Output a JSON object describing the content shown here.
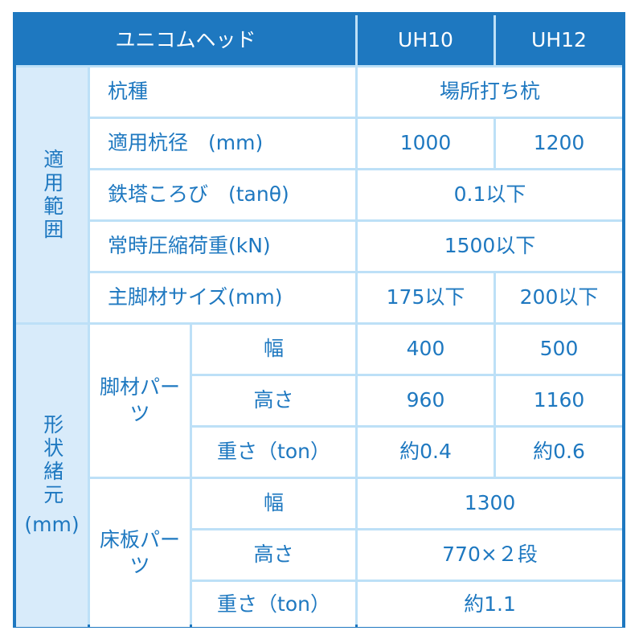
{
  "header": {
    "title": "ユニコムヘッド",
    "col1": "UH10",
    "col2": "UH12"
  },
  "groups": {
    "scope": "適用範囲",
    "shape": "形状緒元",
    "shape_unit": "(mm)",
    "leg": "脚材パーツ",
    "floor": "床板パーツ"
  },
  "rows": {
    "pile_type": {
      "label": "杭種",
      "value": "場所打ち杭"
    },
    "pile_dia": {
      "label": "適用杭径　(mm)",
      "uh10": "1000",
      "uh12": "1200"
    },
    "tilt": {
      "label": "鉄塔ころび　(tanθ)",
      "value": "0.1以下"
    },
    "load": {
      "label": "常時圧縮荷重(kN)",
      "value": "1500以下"
    },
    "main_leg": {
      "label": "主脚材サイズ(mm)",
      "uh10": "175以下",
      "uh12": "200以下"
    },
    "leg_width": {
      "label": "幅",
      "uh10": "400",
      "uh12": "500"
    },
    "leg_height": {
      "label": "高さ",
      "uh10": "960",
      "uh12": "1160"
    },
    "leg_weight": {
      "label": "重さ（ton）",
      "uh10": "約0.4",
      "uh12": "約0.6"
    },
    "floor_width": {
      "label": "幅",
      "value": "1300"
    },
    "floor_height": {
      "label": "高さ",
      "value": "770×２段"
    },
    "floor_weight": {
      "label": "重さ（ton）",
      "value": "約1.1"
    }
  },
  "colors": {
    "primary": "#1e78c0",
    "grid": "#bde0f7",
    "side_bg": "#d8ebfa"
  }
}
